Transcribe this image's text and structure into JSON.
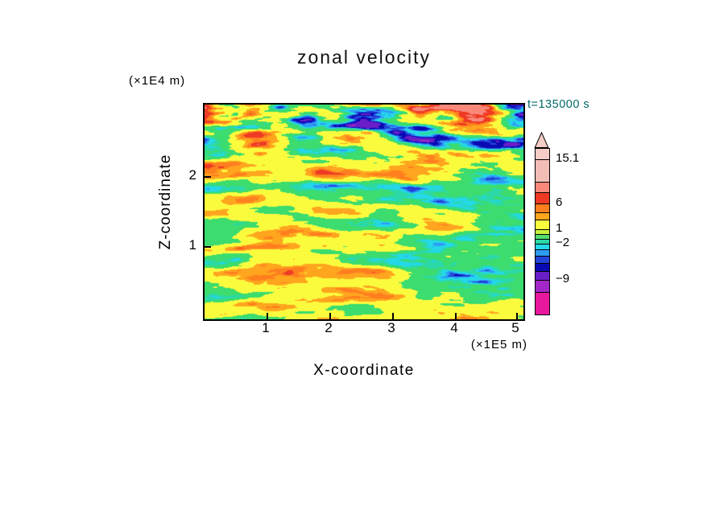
{
  "title": "zonal velocity",
  "time_label": "t=135000 s",
  "axes": {
    "x_label": "X-coordinate",
    "y_label": "Z-coordinate",
    "x_unit": "(×1E5 m)",
    "y_unit": "(×1E4 m)",
    "x_ticks": [
      "1",
      "2",
      "3",
      "4",
      "5"
    ],
    "y_ticks": [
      "1",
      "2"
    ]
  },
  "colors": {
    "background": "#FFFFFF",
    "axis": "#000000",
    "time_label_text": "#006868"
  },
  "colorbar": {
    "arrow_color": "#F5CDC6",
    "labels": [
      {
        "text": "15.1",
        "at": 13
      },
      {
        "text": "6",
        "at": 68
      },
      {
        "text": "1",
        "at": 100
      },
      {
        "text": "−2",
        "at": 118
      },
      {
        "text": "−9",
        "at": 163
      }
    ],
    "segments": [
      {
        "color": "#F5CDC6",
        "h": 13
      },
      {
        "color": "#F2BDB5",
        "h": 28
      },
      {
        "color": "#F9887A",
        "h": 13
      },
      {
        "color": "#EE3A24",
        "h": 14
      },
      {
        "color": "#FF7F1E",
        "h": 11
      },
      {
        "color": "#FFA51E",
        "h": 9
      },
      {
        "color": "#FBFB3E",
        "h": 12
      },
      {
        "color": "#C8F03C",
        "h": 6
      },
      {
        "color": "#55DC6E",
        "h": 6
      },
      {
        "color": "#2BD9A8",
        "h": 6
      },
      {
        "color": "#24D8E8",
        "h": 7
      },
      {
        "color": "#2E9BF5",
        "h": 8
      },
      {
        "color": "#2244D8",
        "h": 9
      },
      {
        "color": "#0A0AB4",
        "h": 10
      },
      {
        "color": "#6A1EC8",
        "h": 11
      },
      {
        "color": "#A428C8",
        "h": 15
      },
      {
        "color": "#E8189C",
        "h": 28
      }
    ]
  },
  "chart_data": {
    "type": "heatmap",
    "title": "zonal velocity",
    "xlabel": "X-coordinate (×1E5 m)",
    "ylabel": "Z-coordinate (×1E4 m)",
    "x_ticks": [
      1,
      2,
      3,
      4,
      5
    ],
    "y_ticks": [
      1,
      2
    ],
    "x_range_1e5_m": [
      0,
      5.08
    ],
    "y_range_1e4_m": [
      0,
      3.07
    ],
    "time_s": 135000,
    "colorbar_tick_values": [
      15.1,
      6,
      1,
      -2,
      -9
    ],
    "field_summary": "Turbulent zonal-velocity cross-section with horizontally elongated streaks: background mostly 1 to 4 (yellow) and -1 to 1 (green), frequent cyan patches near -2, orange/red maxima up to ~8-15 and dark-blue/navy minima below -4 concentrated near the top of the domain; bottom of domain mostly yellow/green.",
    "levels": [
      -9,
      -6,
      -4.5,
      -3.5,
      -2.9,
      -2.3,
      -1.5,
      -0.9,
      1.0,
      3.6,
      4.8,
      6.0,
      8,
      11,
      15.1
    ],
    "palette": [
      "#E8189C",
      "#A428C8",
      "#6A1EC8",
      "#0A0AB4",
      "#2244D8",
      "#2E9BF5",
      "#24D8E8",
      "#2BD9A8",
      "#3CDC6E",
      "#FBFB3E",
      "#FFA51E",
      "#FF7F1E",
      "#EE3A24",
      "#F9887A",
      "#F2BDB5",
      "#F5CDC6"
    ]
  }
}
